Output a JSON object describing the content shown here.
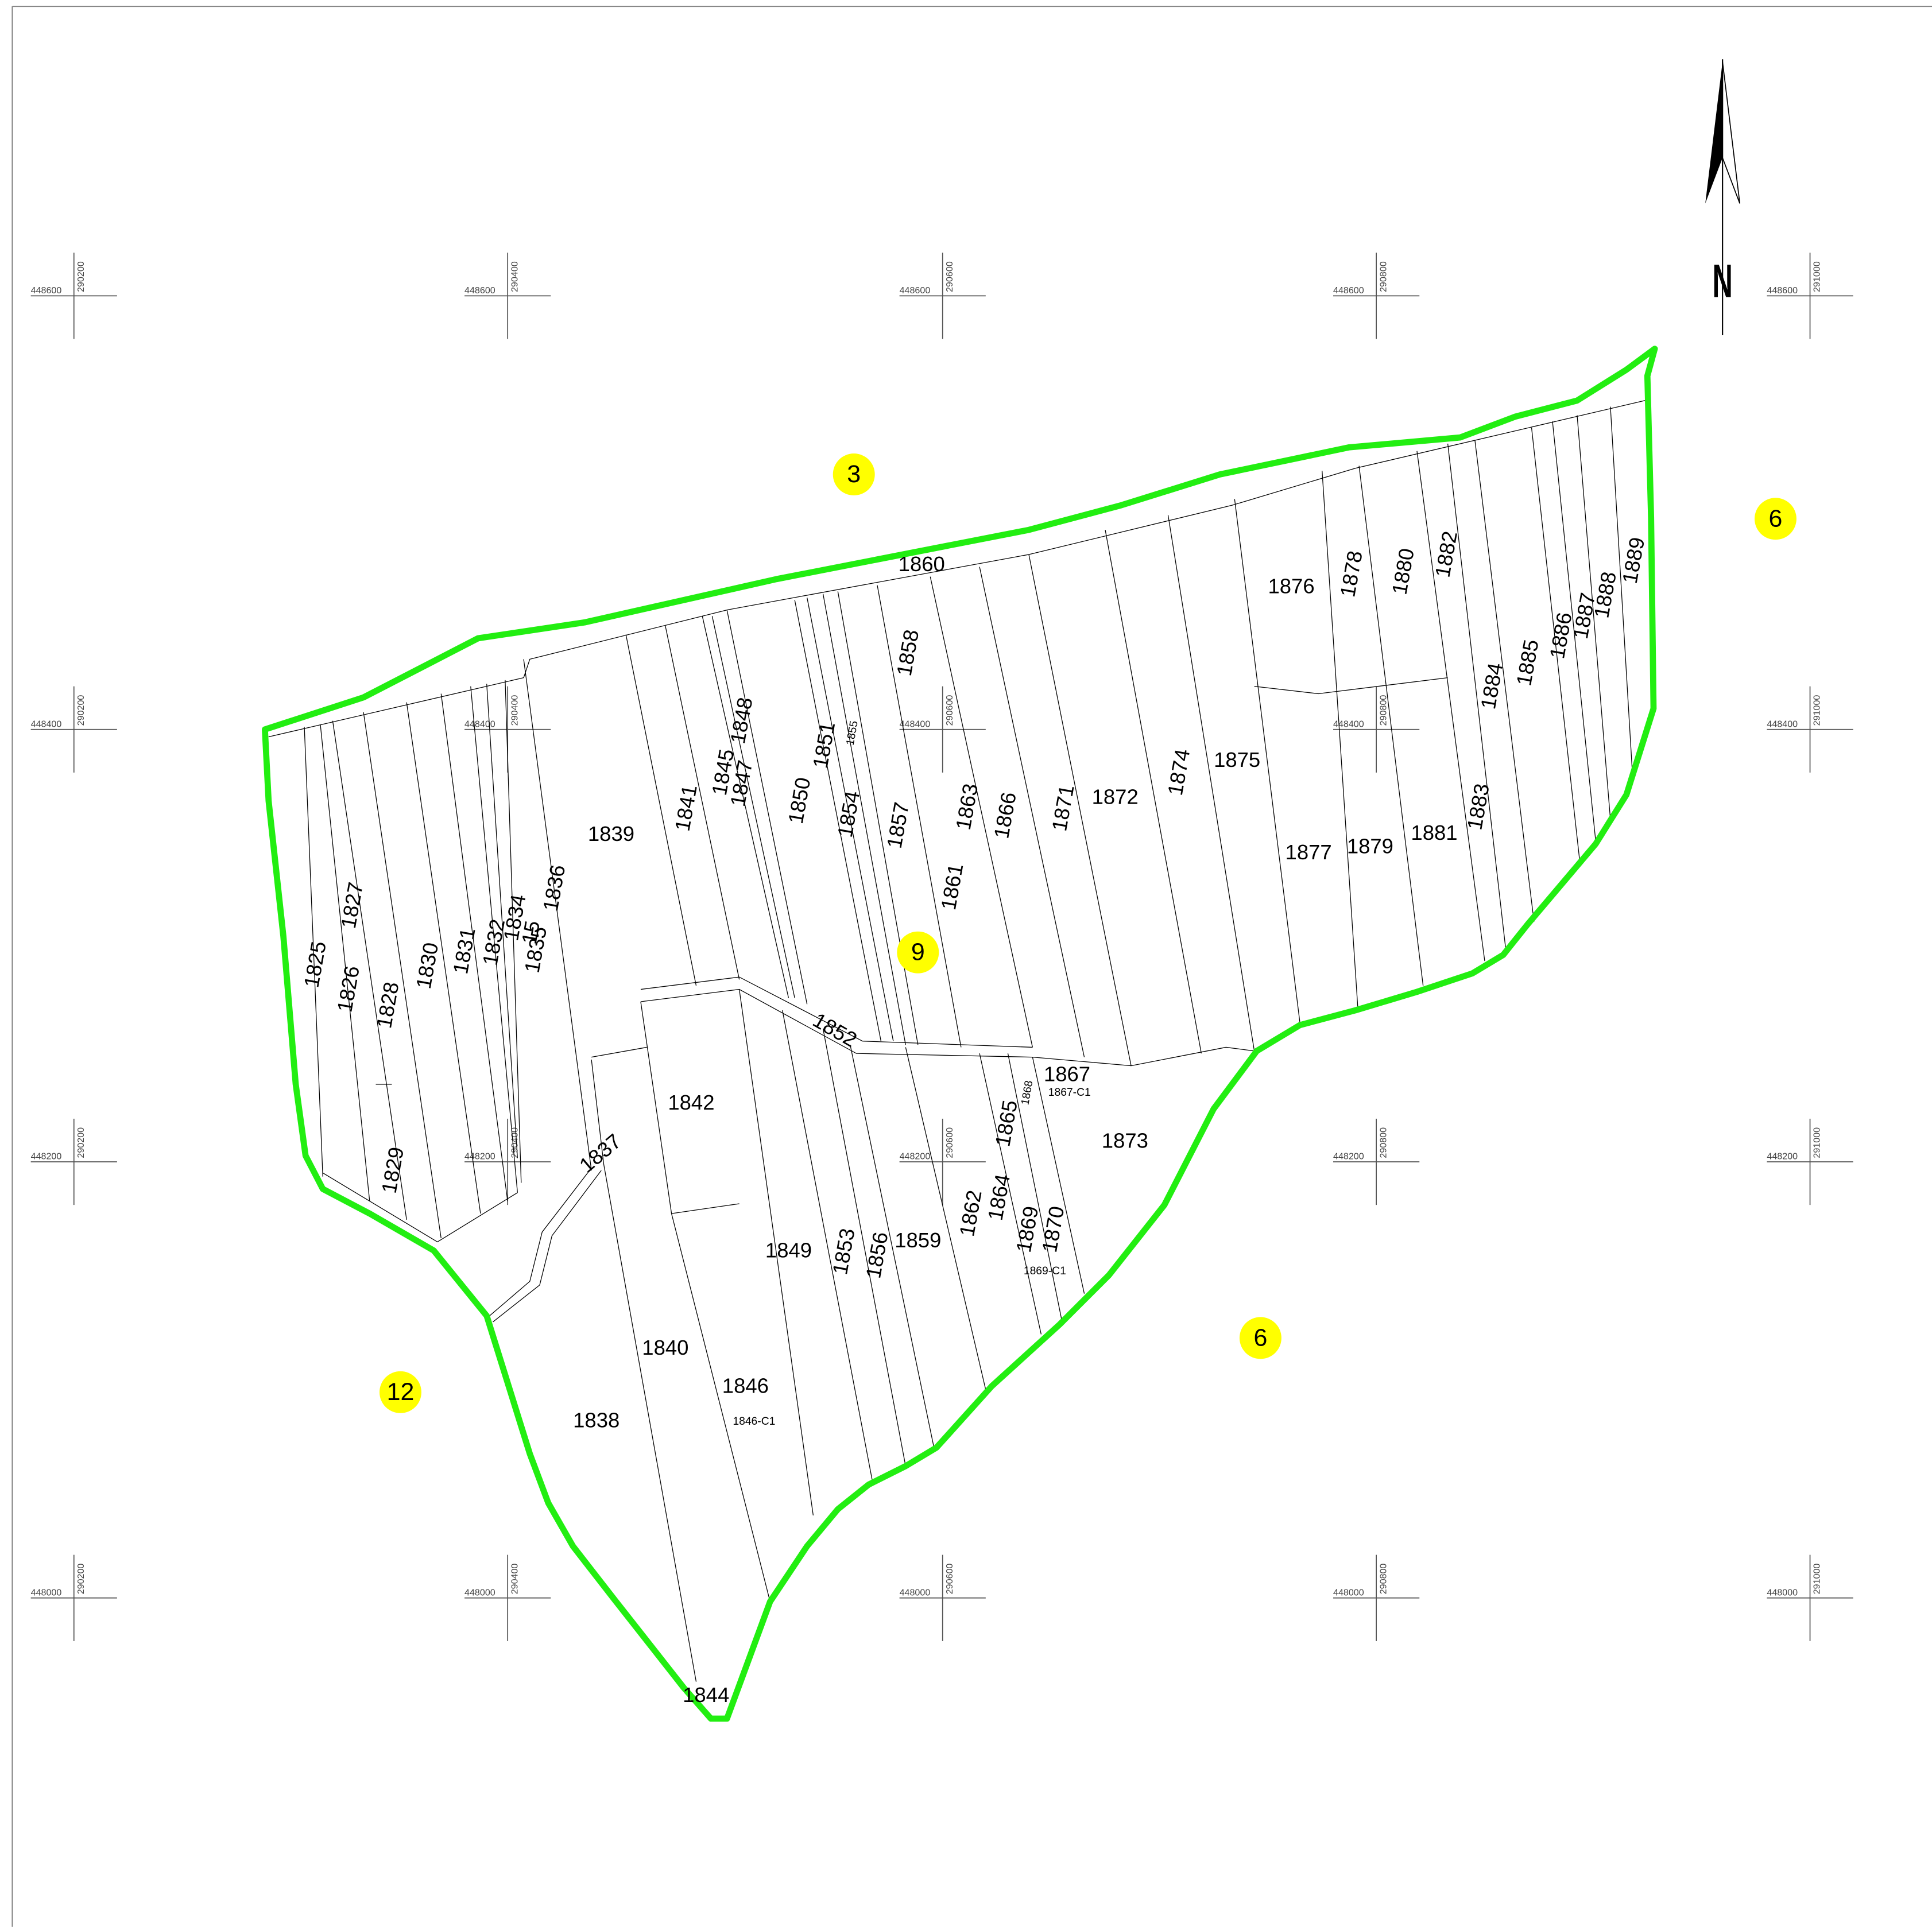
{
  "parcels": [
    "1825",
    "1826",
    "1827",
    "1828",
    "1829",
    "1830",
    "1831",
    "1832",
    "1834",
    "15",
    "1835",
    "1836",
    "1837",
    "1838",
    "1839",
    "1840",
    "1841",
    "1842",
    "1844",
    "1845",
    "1846",
    "1846-C1",
    "1847",
    "1848",
    "1849",
    "1850",
    "1851",
    "1852",
    "1853",
    "1854",
    "1855",
    "1856",
    "1857",
    "1858",
    "1859",
    "1860",
    "1861",
    "1862",
    "1863",
    "1864",
    "1865",
    "1866",
    "1867",
    "1867-C1",
    "1868",
    "1869",
    "1870",
    "1869-C1",
    "1871",
    "1872",
    "1873",
    "1874",
    "1875",
    "1876",
    "1877",
    "1878",
    "1879",
    "1880",
    "1881",
    "1882",
    "1883",
    "1884",
    "1885",
    "1886",
    "1887",
    "1888",
    "1889"
  ],
  "zones": [
    "3",
    "6",
    "9",
    "12",
    "6"
  ],
  "north": "N",
  "grid": {
    "eastings": [
      "290200",
      "290400",
      "290600",
      "290800",
      "291000"
    ],
    "northings": [
      "448600",
      "448400",
      "448200",
      "448000"
    ]
  }
}
